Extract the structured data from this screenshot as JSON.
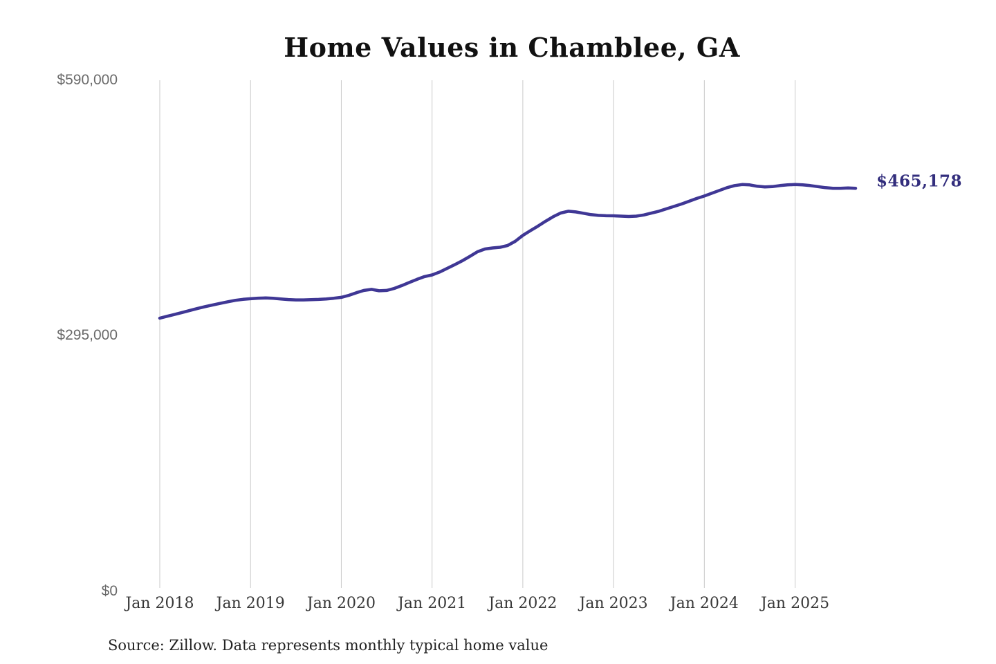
{
  "title": "Home Values in Chamblee, GA",
  "end_label": "$465,178",
  "source_note": "Source: Zillow. Data represents monthly typical home value",
  "colors": {
    "line": "#3f3795",
    "end_label": "#332e7d",
    "gridline": "#c9c9c9",
    "y_label_text": "#6a6a6a",
    "x_label_text": "#383838",
    "title_text": "#111111",
    "source_text": "#232323"
  },
  "y_axis": {
    "labels": [
      "$590,000",
      "$295,000",
      "$0"
    ],
    "values": [
      590000,
      295000,
      0
    ]
  },
  "chart_data": {
    "type": "line",
    "title": "Home Values in Chamblee, GA",
    "xlabel": "",
    "ylabel": "",
    "ylim": [
      0,
      590000
    ],
    "y_ticks": [
      0,
      295000,
      590000
    ],
    "y_tick_labels": [
      "$0",
      "$295,000",
      "$590,000"
    ],
    "x_tick_labels": [
      "Jan 2018",
      "Jan 2019",
      "Jan 2020",
      "Jan 2021",
      "Jan 2022",
      "Jan 2023",
      "Jan 2024",
      "Jan 2025"
    ],
    "grid": "vertical-only",
    "legend": "none",
    "frequency": "monthly",
    "end_annotation": {
      "text": "$465,178",
      "value": 465178
    },
    "series": [
      {
        "name": "Typical home value",
        "unit": "USD",
        "x": [
          "2018-01",
          "2018-02",
          "2018-03",
          "2018-04",
          "2018-05",
          "2018-06",
          "2018-07",
          "2018-08",
          "2018-09",
          "2018-10",
          "2018-11",
          "2018-12",
          "2019-01",
          "2019-02",
          "2019-03",
          "2019-04",
          "2019-05",
          "2019-06",
          "2019-07",
          "2019-08",
          "2019-09",
          "2019-10",
          "2019-11",
          "2019-12",
          "2020-01",
          "2020-02",
          "2020-03",
          "2020-04",
          "2020-05",
          "2020-06",
          "2020-07",
          "2020-08",
          "2020-09",
          "2020-10",
          "2020-11",
          "2020-12",
          "2021-01",
          "2021-02",
          "2021-03",
          "2021-04",
          "2021-05",
          "2021-06",
          "2021-07",
          "2021-08",
          "2021-09",
          "2021-10",
          "2021-11",
          "2021-12",
          "2022-01",
          "2022-02",
          "2022-03",
          "2022-04",
          "2022-05",
          "2022-06",
          "2022-07",
          "2022-08",
          "2022-09",
          "2022-10",
          "2022-11",
          "2022-12",
          "2023-01",
          "2023-02",
          "2023-03",
          "2023-04",
          "2023-05",
          "2023-06",
          "2023-07",
          "2023-08",
          "2023-09",
          "2023-10",
          "2023-11",
          "2023-12",
          "2024-01",
          "2024-02",
          "2024-03",
          "2024-04",
          "2024-05",
          "2024-06",
          "2024-07",
          "2024-08",
          "2024-09",
          "2024-10",
          "2024-11",
          "2024-12",
          "2025-01",
          "2025-02",
          "2025-03",
          "2025-04",
          "2025-05",
          "2025-06",
          "2025-07",
          "2025-08",
          "2025-09"
        ],
        "values": [
          315200,
          317400,
          319600,
          321800,
          324100,
          326400,
          328500,
          330400,
          332300,
          334100,
          335800,
          336900,
          337600,
          338300,
          338500,
          338100,
          337400,
          336700,
          336300,
          336300,
          336500,
          336800,
          337400,
          338200,
          339200,
          341500,
          344600,
          347200,
          348400,
          346800,
          347200,
          349500,
          352800,
          356500,
          360000,
          363200,
          365100,
          368500,
          372700,
          377000,
          381500,
          386500,
          391900,
          395100,
          396300,
          397100,
          399100,
          403900,
          410800,
          416200,
          421500,
          427100,
          432300,
          436600,
          438700,
          437900,
          436400,
          434800,
          433900,
          433500,
          433400,
          433000,
          432600,
          433000,
          434400,
          436500,
          438700,
          441500,
          444300,
          447100,
          450300,
          453500,
          456300,
          459500,
          462700,
          465900,
          468300,
          469500,
          469100,
          467500,
          466700,
          467100,
          468300,
          469100,
          469500,
          469100,
          468300,
          467100,
          465900,
          465100,
          465100,
          465500,
          465178
        ]
      }
    ]
  }
}
